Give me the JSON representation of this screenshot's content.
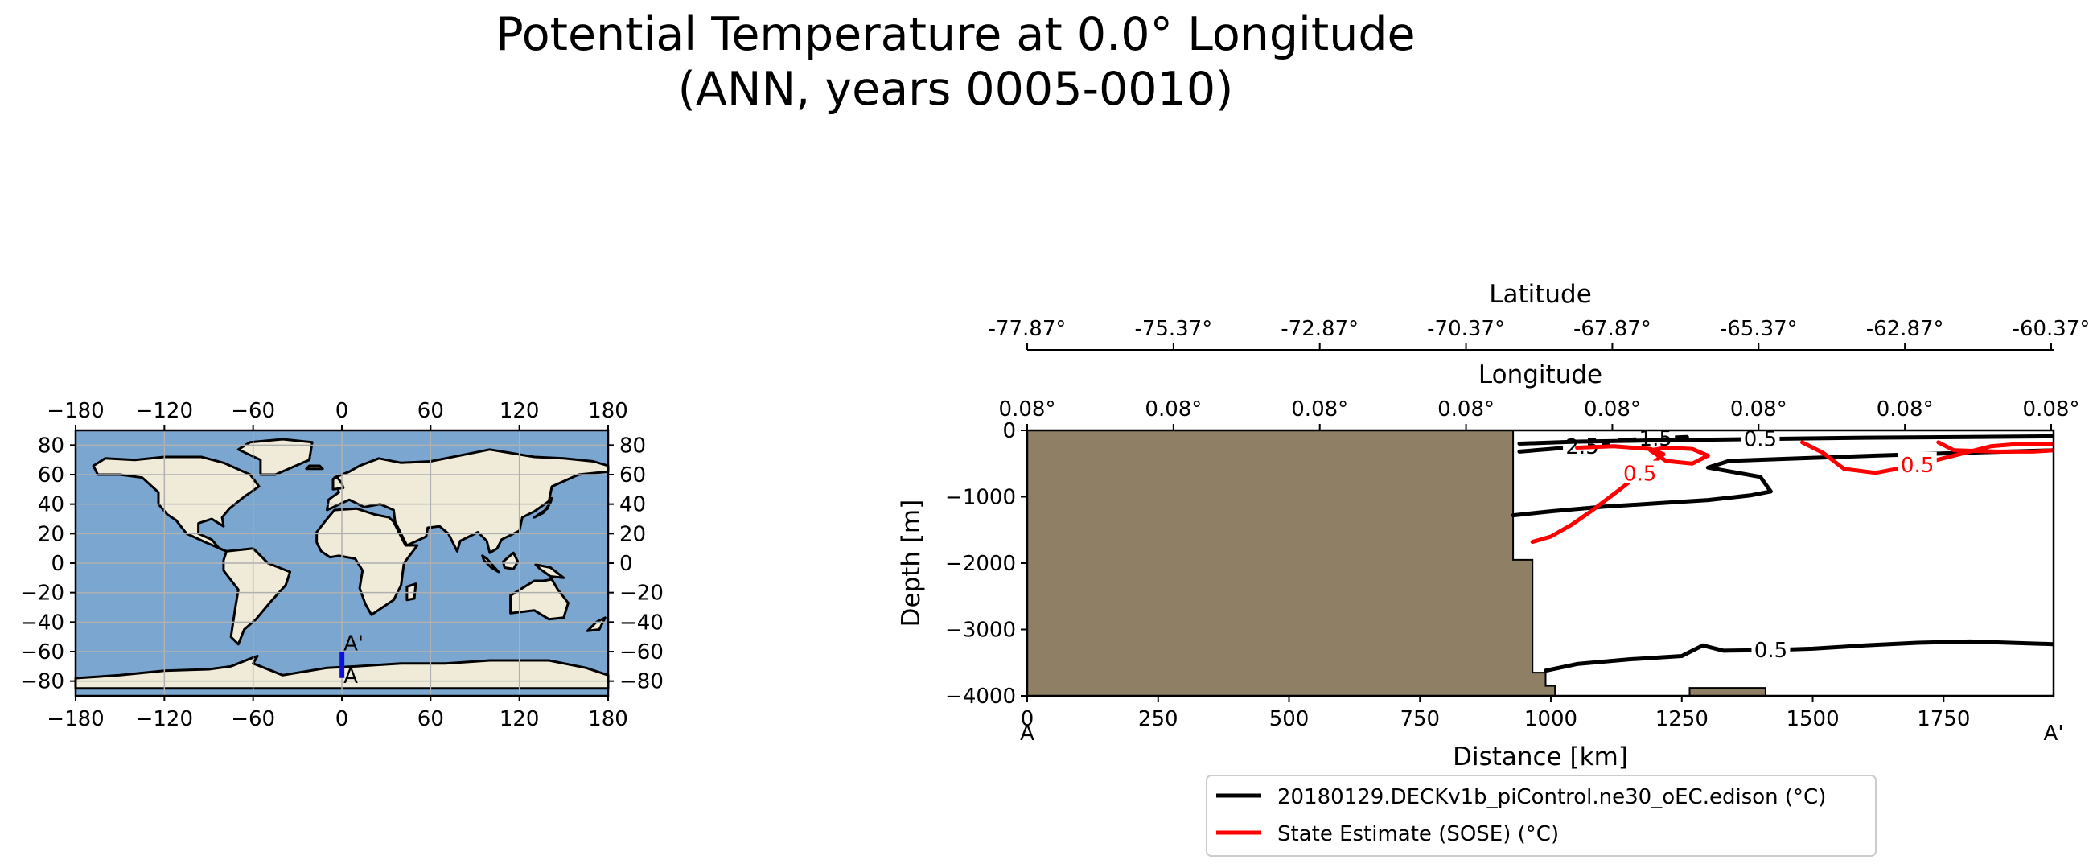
{
  "title": {
    "line1": "Potential Temperature at 0.0° Longitude",
    "line2": "(ANN, years 0005-0010)"
  },
  "chart_data": [
    {
      "type": "map",
      "panel": "inset-map",
      "x_ticks": [
        -180,
        -120,
        -60,
        0,
        60,
        120,
        180
      ],
      "y_ticks": [
        80,
        60,
        40,
        20,
        0,
        -20,
        -40,
        -60,
        -80
      ],
      "xlim": [
        -180,
        180
      ],
      "ylim": [
        -90,
        90
      ],
      "grid": true,
      "transect": {
        "lon": 0.08,
        "lat_start": -77.87,
        "lat_end": -60.37,
        "start_label": "A",
        "end_label": "A'",
        "color": "#1010dd"
      },
      "colors": {
        "ocean": "#7aa6cf",
        "land": "#efebd8",
        "grid": "#b0b0b0"
      }
    },
    {
      "type": "contour",
      "panel": "transect",
      "xlabel": "Distance [km]",
      "ylabel": "Depth [m]",
      "xlim": [
        0,
        1960
      ],
      "ylim": [
        -4000,
        0
      ],
      "x_ticks": [
        0,
        250,
        500,
        750,
        1000,
        1250,
        1500,
        1750
      ],
      "x_tick_labels": [
        "0",
        "250",
        "500",
        "750",
        "1000",
        "1250",
        "1500",
        "1750"
      ],
      "y_ticks": [
        0,
        -1000,
        -2000,
        -3000,
        -4000
      ],
      "y_tick_labels": [
        "0",
        "−1000",
        "−2000",
        "−3000",
        "−4000"
      ],
      "end_labels": {
        "start": "A",
        "end": "A'"
      },
      "longitude_axis": {
        "label": "Longitude",
        "tick_labels": [
          "0.08°",
          "0.08°",
          "0.08°",
          "0.08°",
          "0.08°",
          "0.08°",
          "0.08°",
          "0.08°"
        ]
      },
      "latitude_axis": {
        "label": "Latitude",
        "tick_labels": [
          "-77.87°",
          "-75.37°",
          "-72.87°",
          "-70.37°",
          "-67.87°",
          "-65.37°",
          "-62.87°",
          "-60.37°"
        ]
      },
      "bathymetry": {
        "color": "#8e7f65",
        "outline": [
          [
            0,
            0
          ],
          [
            928,
            0
          ],
          [
            928,
            -1950
          ],
          [
            965,
            -1950
          ],
          [
            965,
            -3650
          ],
          [
            990,
            -3650
          ],
          [
            990,
            -3850
          ],
          [
            1008,
            -3850
          ],
          [
            1008,
            -4000
          ],
          [
            0,
            -4000
          ]
        ],
        "seamount": [
          [
            1265,
            -4000
          ],
          [
            1265,
            -3880
          ],
          [
            1410,
            -3880
          ],
          [
            1410,
            -4000
          ]
        ]
      },
      "series": [
        {
          "name": "20180129.DECKv1b_piControl.ne30_oEC.edison (°C)",
          "color": "#000000",
          "contours": [
            {
              "level": "2.5",
              "points": [
                [
                  940,
                  -320
                ],
                [
                  1000,
                  -280
                ],
                [
                  1060,
                  -240
                ],
                [
                  1110,
                  -210
                ]
              ]
            },
            {
              "level": "1.5",
              "points": [
                [
                  1130,
                  -150
                ],
                [
                  1200,
                  -120
                ],
                [
                  1260,
                  -100
                ]
              ]
            },
            {
              "level": "0.5",
              "points": [
                [
                  940,
                  -200
                ],
                [
                  1050,
                  -170
                ],
                [
                  1200,
                  -150
                ],
                [
                  1400,
                  -130
                ],
                [
                  1600,
                  -110
                ],
                [
                  1800,
                  -100
                ],
                [
                  1960,
                  -90
                ]
              ]
            },
            {
              "level": "",
              "points": [
                [
                  928,
                  -1280
                ],
                [
                  1000,
                  -1220
                ],
                [
                  1100,
                  -1150
                ],
                [
                  1200,
                  -1100
                ],
                [
                  1300,
                  -1050
                ],
                [
                  1380,
                  -980
                ],
                [
                  1420,
                  -920
                ],
                [
                  1400,
                  -700
                ],
                [
                  1300,
                  -560
                ],
                [
                  1340,
                  -460
                ],
                [
                  1480,
                  -420
                ],
                [
                  1620,
                  -380
                ],
                [
                  1780,
                  -340
                ],
                [
                  1960,
                  -300
                ]
              ]
            },
            {
              "level": "0.5",
              "points": [
                [
                  990,
                  -3620
                ],
                [
                  1050,
                  -3520
                ],
                [
                  1150,
                  -3450
                ],
                [
                  1250,
                  -3400
                ],
                [
                  1290,
                  -3240
                ],
                [
                  1330,
                  -3320
                ],
                [
                  1420,
                  -3310
                ],
                [
                  1500,
                  -3290
                ],
                [
                  1600,
                  -3240
                ],
                [
                  1700,
                  -3200
                ],
                [
                  1800,
                  -3180
                ],
                [
                  1960,
                  -3220
                ]
              ]
            }
          ]
        },
        {
          "name": "State Estimate (SOSE) (°C)",
          "color": "#ff0000",
          "contours": [
            {
              "level": "0.5",
              "points": [
                [
                  965,
                  -1680
                ],
                [
                  1000,
                  -1600
                ],
                [
                  1040,
                  -1420
                ],
                [
                  1080,
                  -1200
                ],
                [
                  1130,
                  -900
                ],
                [
                  1170,
                  -650
                ],
                [
                  1200,
                  -460
                ],
                [
                  1215,
                  -360
                ],
                [
                  1190,
                  -280
                ],
                [
                  1120,
                  -240
                ],
                [
                  1050,
                  -260
                ]
              ]
            },
            {
              "level": "",
              "points": [
                [
                  1190,
                  -300
                ],
                [
                  1220,
                  -460
                ],
                [
                  1270,
                  -500
                ],
                [
                  1300,
                  -380
                ],
                [
                  1270,
                  -280
                ],
                [
                  1220,
                  -260
                ],
                [
                  1190,
                  -300
                ]
              ]
            },
            {
              "level": "0.5",
              "points": [
                [
                  1480,
                  -180
                ],
                [
                  1520,
                  -340
                ],
                [
                  1560,
                  -580
                ],
                [
                  1620,
                  -640
                ],
                [
                  1700,
                  -520
                ],
                [
                  1780,
                  -360
                ],
                [
                  1840,
                  -240
                ],
                [
                  1900,
                  -200
                ],
                [
                  1960,
                  -200
                ]
              ]
            },
            {
              "level": "",
              "points": [
                [
                  1740,
                  -180
                ],
                [
                  1770,
                  -300
                ],
                [
                  1850,
                  -320
                ],
                [
                  1920,
                  -320
                ],
                [
                  1960,
                  -300
                ]
              ]
            }
          ]
        }
      ],
      "legend": {
        "placement": "bottom-center"
      }
    }
  ]
}
